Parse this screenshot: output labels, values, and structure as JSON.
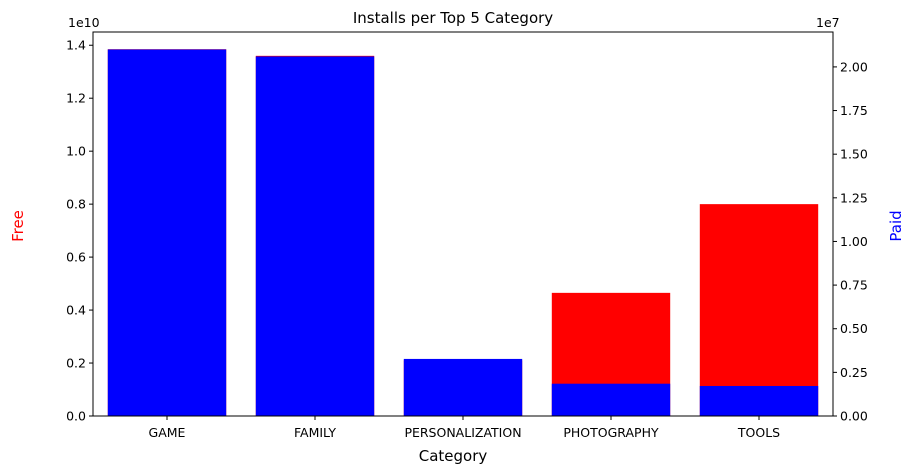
{
  "chart_data": {
    "type": "bar",
    "title": "Installs per Top 5 Category",
    "xlabel": "Category",
    "categories": [
      "GAME",
      "FAMILY",
      "PERSONALIZATION",
      "PHOTOGRAPHY",
      "TOOLS"
    ],
    "series": [
      {
        "name": "Free",
        "axis": "left",
        "color": "#ff0000",
        "values": [
          13850000000,
          13600000000,
          2100000000,
          4650000000,
          8000000000
        ]
      },
      {
        "name": "Paid",
        "axis": "right",
        "color": "#0000ff",
        "values": [
          21000000,
          20600000,
          3270000,
          1850000,
          1720000
        ]
      }
    ],
    "y_left": {
      "label": "Free",
      "label_color": "#ff0000",
      "offset_text": "1e10",
      "tick_values": [
        0,
        2000000000,
        4000000000,
        6000000000,
        8000000000,
        10000000000,
        12000000000,
        14000000000
      ],
      "tick_labels": [
        "0.0",
        "0.2",
        "0.4",
        "0.6",
        "0.8",
        "1.0",
        "1.2",
        "1.4"
      ],
      "ylim": [
        0,
        14500000000
      ]
    },
    "y_right": {
      "label": "Paid",
      "label_color": "#0000ff",
      "offset_text": "1e7",
      "tick_values": [
        0,
        2500000,
        5000000,
        7500000,
        10000000,
        12500000,
        15000000,
        17500000,
        20000000
      ],
      "tick_labels": [
        "0.00",
        "0.25",
        "0.50",
        "0.75",
        "1.00",
        "1.25",
        "1.50",
        "1.75",
        "2.00"
      ],
      "ylim": [
        0,
        22000000
      ]
    },
    "grid": false,
    "legend": "none"
  }
}
